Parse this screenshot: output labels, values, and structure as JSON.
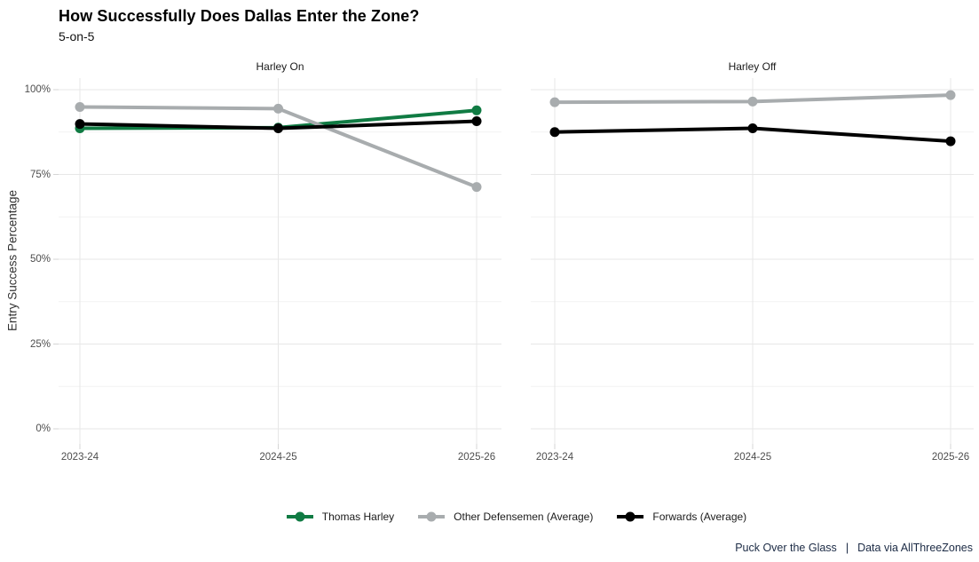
{
  "title": "How Successfully Does Dallas Enter the Zone?",
  "subtitle": "5-on-5",
  "y_axis_title": "Entry Success Percentage",
  "colors": {
    "harley_green": "#107B43",
    "defensemen_gray": "#A8ACAE",
    "forwards_black": "#000000",
    "grid_major": "#E7E7E7",
    "grid_minor": "#F2F2F2",
    "tick_mark": "#D5D5D5",
    "axis_text": "#4D4D4D",
    "footer_text": "#1C2B45"
  },
  "legend": [
    {
      "label": "Thomas Harley",
      "color": "#107B43"
    },
    {
      "label": "Other Defensemen (Average)",
      "color": "#A8ACAE"
    },
    {
      "label": "Forwards (Average)",
      "color": "#000000"
    }
  ],
  "footer": {
    "left": "Puck Over the Glass",
    "separator": "|",
    "right": "Data via AllThreeZones"
  },
  "chart_data": {
    "type": "line",
    "categories": [
      "2023-24",
      "2024-25",
      "2025-26"
    ],
    "ylabel": "Entry Success Percentage",
    "ylim": [
      0,
      100
    ],
    "y_ticks": [
      {
        "label": "0%",
        "value": 0
      },
      {
        "label": "25%",
        "value": 25
      },
      {
        "label": "50%",
        "value": 50
      },
      {
        "label": "75%",
        "value": 75
      },
      {
        "label": "100%",
        "value": 100
      }
    ],
    "y_minor_ticks": [
      12.5,
      37.5,
      62.5,
      87.5
    ],
    "grid": true,
    "legend_position": "bottom",
    "facets": [
      {
        "label": "Harley On",
        "series": [
          {
            "name": "Thomas Harley",
            "color": "#107B43",
            "values": [
              88.6,
              88.8,
              93.9
            ]
          },
          {
            "name": "Other Defensemen (Average)",
            "color": "#A8ACAE",
            "values": [
              94.9,
              94.4,
              71.3
            ]
          },
          {
            "name": "Forwards (Average)",
            "color": "#000000",
            "values": [
              89.9,
              88.6,
              90.7
            ]
          }
        ]
      },
      {
        "label": "Harley Off",
        "series": [
          {
            "name": "Other Defensemen (Average)",
            "color": "#A8ACAE",
            "values": [
              96.3,
              96.5,
              98.4
            ]
          },
          {
            "name": "Forwards (Average)",
            "color": "#000000",
            "values": [
              87.5,
              88.6,
              84.8
            ]
          }
        ]
      }
    ]
  }
}
